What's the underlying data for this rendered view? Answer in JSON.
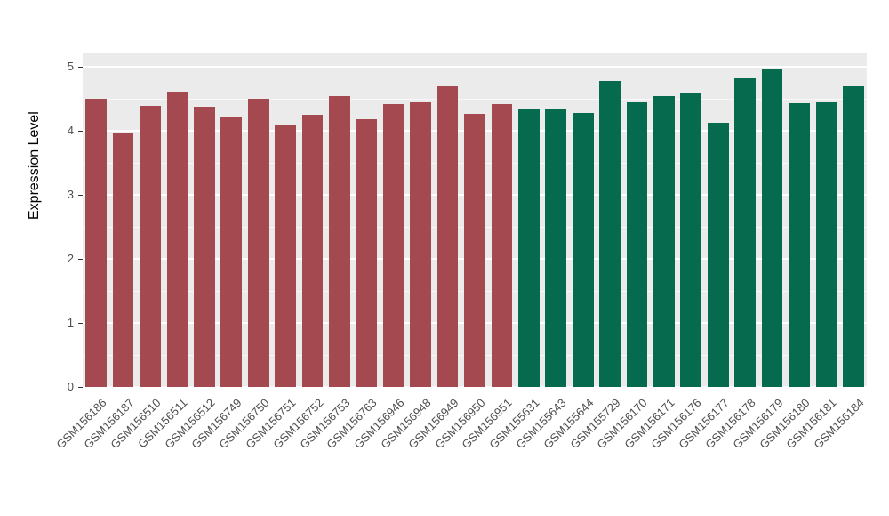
{
  "chart_data": {
    "type": "bar",
    "title": "",
    "xlabel": "",
    "ylabel": "Expression Level",
    "ylim": [
      0,
      5.2
    ],
    "yticks": [
      0,
      1,
      2,
      3,
      4,
      5
    ],
    "grid": "on",
    "legend": "none",
    "panel_background": "#EBEBEB",
    "gridline_color": "#ffffff",
    "categories": [
      "GSM156186",
      "GSM156187",
      "GSM156510",
      "GSM156511",
      "GSM156512",
      "GSM156749",
      "GSM156750",
      "GSM156751",
      "GSM156752",
      "GSM156753",
      "GSM156763",
      "GSM156946",
      "GSM156948",
      "GSM156949",
      "GSM156950",
      "GSM156951",
      "GSM155631",
      "GSM155643",
      "GSM155644",
      "GSM155729",
      "GSM156170",
      "GSM156171",
      "GSM156176",
      "GSM156177",
      "GSM156178",
      "GSM156179",
      "GSM156180",
      "GSM156181",
      "GSM156184"
    ],
    "values": [
      4.5,
      3.97,
      4.39,
      4.61,
      4.38,
      4.22,
      4.5,
      4.1,
      4.25,
      4.54,
      4.18,
      4.42,
      4.45,
      4.7,
      4.27,
      4.42,
      4.35,
      4.35,
      4.28,
      4.78,
      4.45,
      4.54,
      4.6,
      4.13,
      4.82,
      4.96,
      4.43,
      4.45,
      4.7
    ],
    "color_groups": [
      {
        "color": "#A3494F",
        "from": 0,
        "to": 15
      },
      {
        "color": "#066B4E",
        "from": 16,
        "to": 28
      }
    ]
  }
}
